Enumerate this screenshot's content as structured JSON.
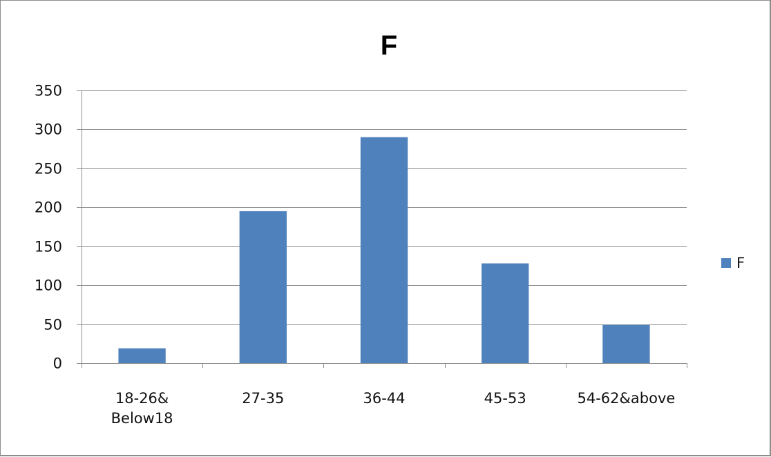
{
  "chart_data": {
    "type": "bar",
    "title": "F",
    "xlabel": "",
    "ylabel": "",
    "categories": [
      [
        "18-26&",
        "Below18"
      ],
      [
        "27-35"
      ],
      [
        "36-44"
      ],
      [
        "45-53"
      ],
      [
        "54-62&above"
      ]
    ],
    "series": [
      {
        "name": "F",
        "values": [
          19,
          195,
          290,
          128,
          49
        ],
        "color": "#4f81bd"
      }
    ],
    "ylim": [
      0,
      350
    ],
    "yticks": [
      0,
      50,
      100,
      150,
      200,
      250,
      300,
      350
    ],
    "grid": true,
    "legend_position": "right",
    "colors": {
      "bar": "#4f81bd",
      "gridline": "#8c8c8c",
      "axis": "#8c8c8c",
      "text": "#111111"
    }
  }
}
